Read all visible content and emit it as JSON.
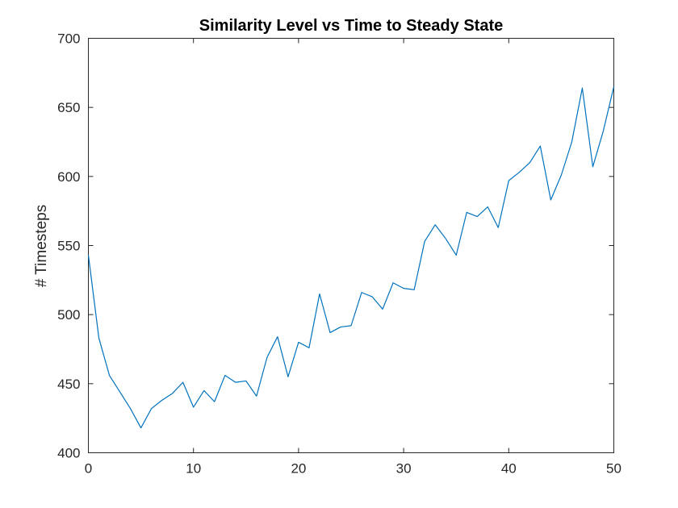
{
  "chart_data": {
    "type": "line",
    "title": "Similarity Level vs Time to Steady State",
    "xlabel": "",
    "ylabel": "# Timesteps",
    "xlim": [
      0,
      50
    ],
    "ylim": [
      400,
      700
    ],
    "xticks": [
      0,
      10,
      20,
      30,
      40,
      50
    ],
    "yticks": [
      400,
      450,
      500,
      550,
      600,
      650,
      700
    ],
    "grid": false,
    "legend": "none",
    "color": "#0072BD",
    "series": [
      {
        "x": [
          0,
          1,
          2,
          3,
          4,
          5,
          6,
          7,
          8,
          9,
          10,
          11,
          12,
          13,
          14,
          15,
          16,
          17,
          18,
          19,
          20,
          21,
          22,
          23,
          24,
          25,
          26,
          27,
          28,
          29,
          30,
          31,
          32,
          33,
          34,
          35,
          36,
          37,
          38,
          39,
          40,
          41,
          42,
          43,
          44,
          45,
          46,
          47,
          48,
          49,
          50
        ],
        "values": [
          543,
          483,
          456,
          444,
          432,
          418,
          432,
          438,
          443,
          451,
          433,
          445,
          437,
          456,
          451,
          452,
          441,
          469,
          484,
          455,
          480,
          476,
          515,
          487,
          491,
          492,
          516,
          513,
          504,
          523,
          519,
          518,
          553,
          565,
          555,
          543,
          574,
          571,
          578,
          563,
          597,
          603,
          610,
          622,
          583,
          601,
          625,
          664,
          607,
          633,
          665
        ]
      }
    ]
  }
}
